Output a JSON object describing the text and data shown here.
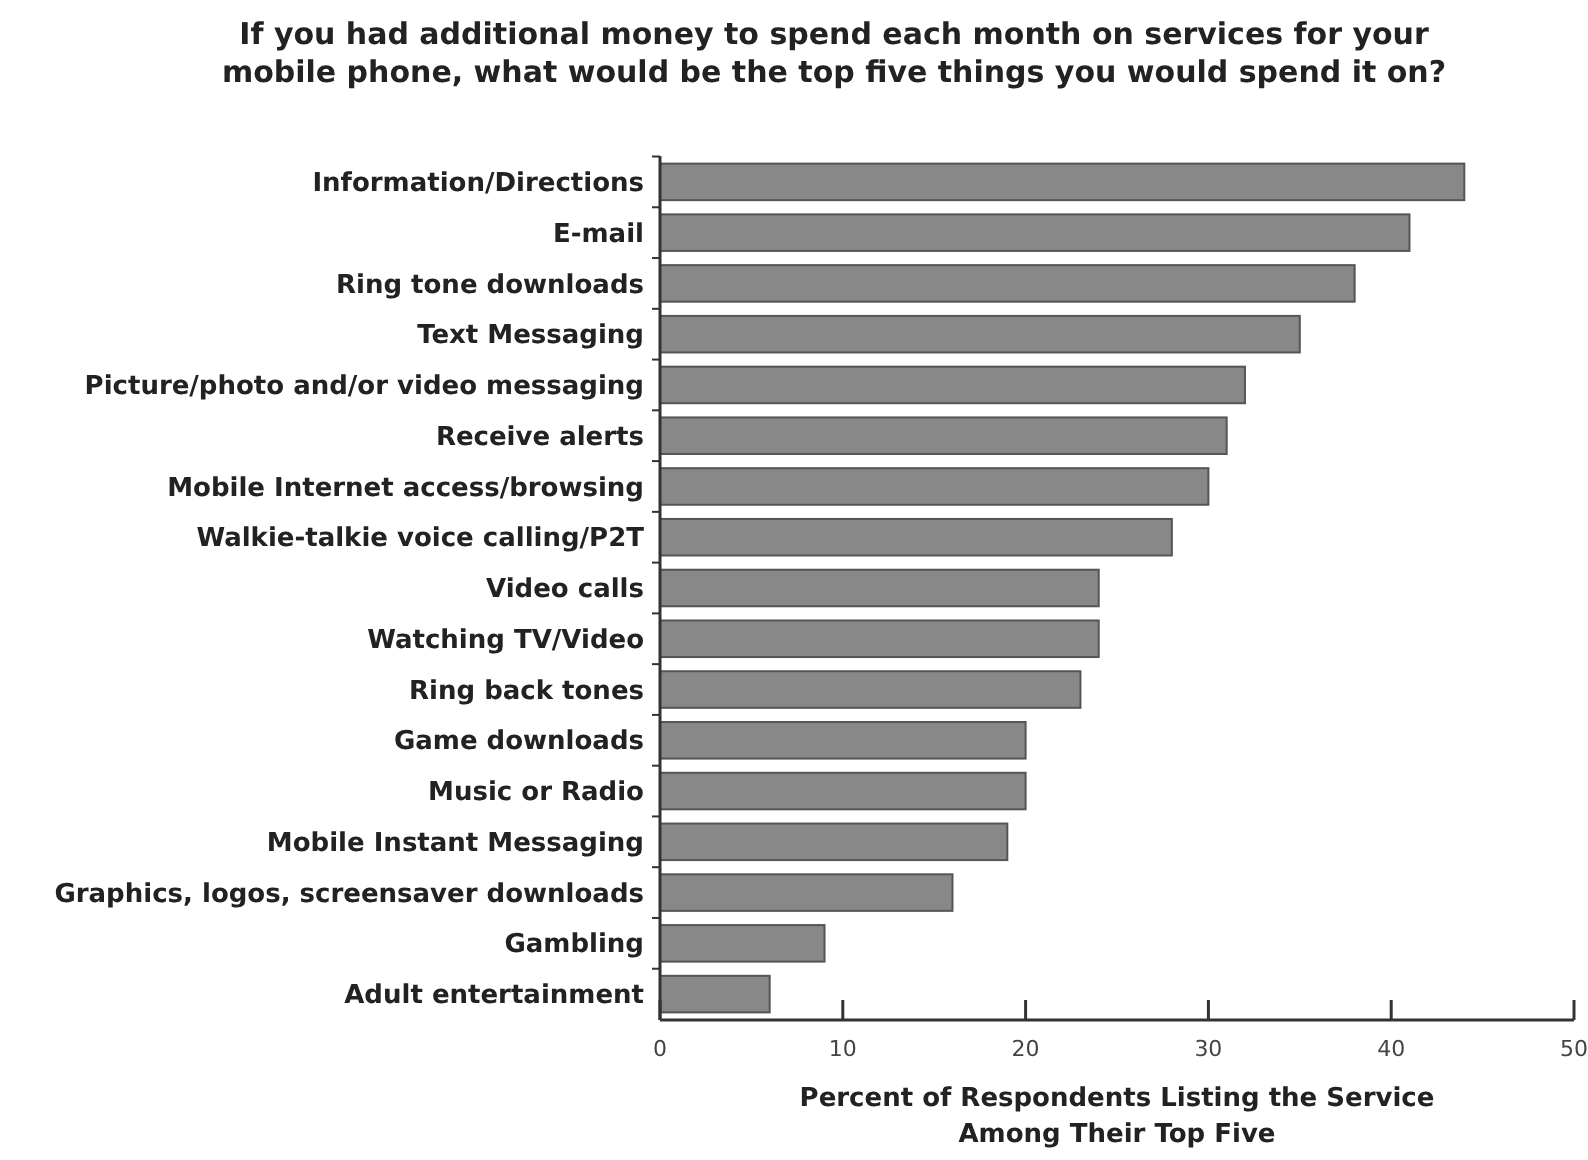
{
  "chart_data": {
    "type": "bar",
    "orientation": "horizontal",
    "title": "If you had additional money to spend each month on services for your\nmobile phone, what would be the top five things you would spend it on?",
    "xlabel": "Percent of Respondents Listing the Service\nAmong Their Top Five",
    "categories": [
      "Information/Directions",
      "E-mail",
      "Ring tone downloads",
      "Text Messaging",
      "Picture/photo and/or video messaging",
      "Receive alerts",
      "Mobile Internet access/browsing",
      "Walkie-talkie voice calling/P2T",
      "Video calls",
      "Watching TV/Video",
      "Ring back tones",
      "Game downloads",
      "Music or Radio",
      "Mobile Instant Messaging",
      "Graphics, logos, screensaver downloads",
      "Gambling",
      "Adult entertainment"
    ],
    "values": [
      44,
      41,
      38,
      35,
      32,
      31,
      30,
      28,
      24,
      24,
      23,
      20,
      20,
      19,
      16,
      9,
      6
    ],
    "color": "#888888",
    "xlim": [
      0,
      50
    ],
    "xticks": [
      0,
      10,
      20,
      30,
      40,
      50
    ],
    "grid": false
  }
}
